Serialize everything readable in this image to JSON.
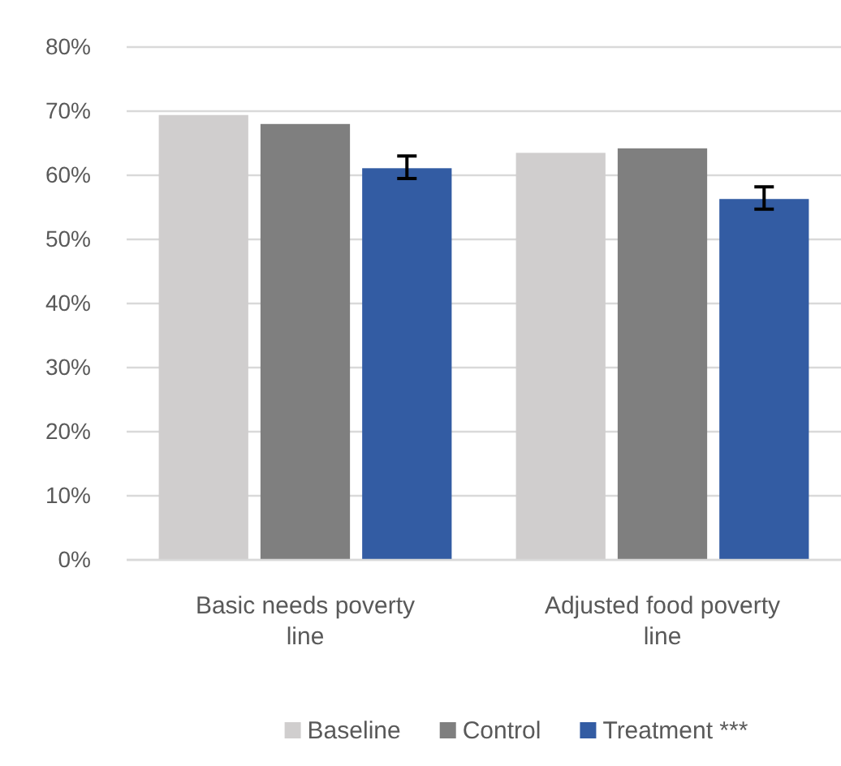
{
  "chart_data": {
    "type": "bar",
    "categories": [
      "Basic needs poverty line",
      "Adjusted food poverty line"
    ],
    "series": [
      {
        "name": "Baseline",
        "color": "#d0cece",
        "values": [
          69.4,
          63.5
        ]
      },
      {
        "name": "Control",
        "color": "#7f7f7f",
        "values": [
          68.0,
          64.2
        ]
      },
      {
        "name": "Treatment ***",
        "color": "#335ca3",
        "values": [
          61.1,
          56.3
        ],
        "errors": [
          [
            59.5,
            63.0
          ],
          [
            54.7,
            58.2
          ]
        ]
      }
    ],
    "ylim": [
      0,
      80
    ],
    "yticks": [
      {
        "value": 0,
        "label": "0%"
      },
      {
        "value": 10,
        "label": "10%"
      },
      {
        "value": 20,
        "label": "20%"
      },
      {
        "value": 30,
        "label": "30%"
      },
      {
        "value": 40,
        "label": "40%"
      },
      {
        "value": 50,
        "label": "50%"
      },
      {
        "value": 60,
        "label": "60%"
      },
      {
        "value": 70,
        "label": "70%"
      },
      {
        "value": 80,
        "label": "80%"
      }
    ],
    "grid": "y",
    "legend": "bottom"
  }
}
